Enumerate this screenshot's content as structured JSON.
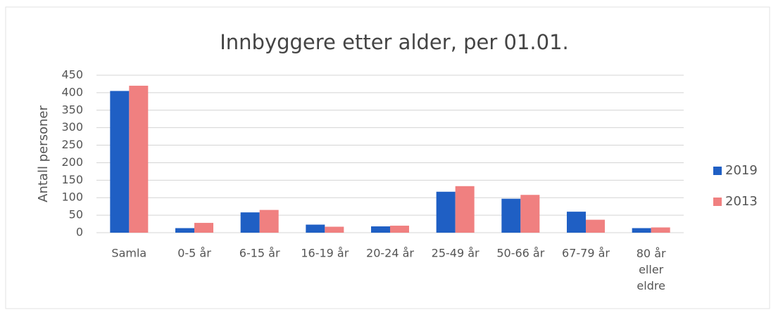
{
  "chart_data": {
    "type": "bar",
    "title": "Innbyggere etter alder, per 01.01.",
    "y_label": "Antall personer",
    "categories": [
      "Samla",
      "0-5 år",
      "6-15 år",
      "16-19 år",
      "20-24 år",
      "25-49 år",
      "50-66 år",
      "67-79 år",
      "80 år eller eldre"
    ],
    "series": [
      {
        "name": "2019",
        "color": "#1f5fc4",
        "values": [
          405,
          13,
          58,
          23,
          18,
          117,
          97,
          60,
          13
        ]
      },
      {
        "name": "2013",
        "color": "#f08080",
        "values": [
          420,
          28,
          65,
          17,
          20,
          133,
          108,
          37,
          15
        ]
      }
    ],
    "ylim": [
      0,
      450
    ],
    "yticks": [
      0,
      50,
      100,
      150,
      200,
      250,
      300,
      350,
      400,
      450
    ],
    "grid": true,
    "legend": "right"
  }
}
